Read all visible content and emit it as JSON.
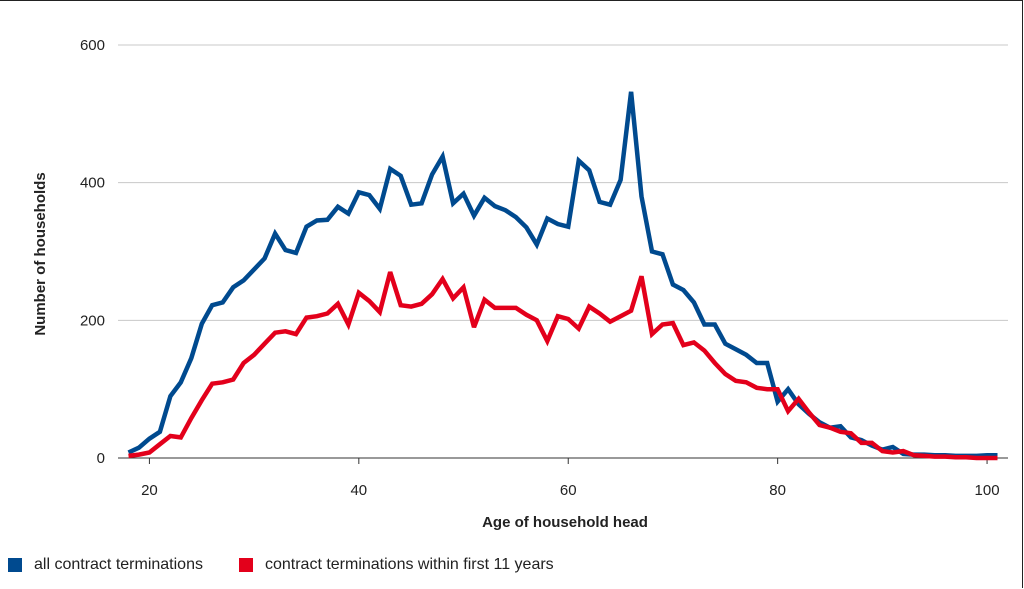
{
  "chart_data": {
    "type": "line",
    "xlabel": "Age of household head",
    "ylabel": "Number of households",
    "xlim": [
      17,
      102
    ],
    "ylim": [
      0,
      600
    ],
    "xticks": [
      20,
      40,
      60,
      80,
      100
    ],
    "yticks": [
      0,
      200,
      400,
      600
    ],
    "grid": "horizontal",
    "legend_position": "bottom-left",
    "x": [
      18,
      19,
      20,
      21,
      22,
      23,
      24,
      25,
      26,
      27,
      28,
      29,
      30,
      31,
      32,
      33,
      34,
      35,
      36,
      37,
      38,
      39,
      40,
      41,
      42,
      43,
      44,
      45,
      46,
      47,
      48,
      49,
      50,
      51,
      52,
      53,
      54,
      55,
      56,
      57,
      58,
      59,
      60,
      61,
      62,
      63,
      64,
      65,
      66,
      67,
      68,
      69,
      70,
      71,
      72,
      73,
      74,
      75,
      76,
      77,
      78,
      79,
      80,
      81,
      82,
      83,
      84,
      85,
      86,
      87,
      88,
      89,
      90,
      91,
      92,
      93,
      94,
      95,
      96,
      97,
      98,
      99,
      100,
      101
    ],
    "series": [
      {
        "name": "all contract terminations",
        "color": "#004a8f",
        "values": [
          8,
          15,
          28,
          38,
          90,
          110,
          145,
          195,
          222,
          226,
          248,
          258,
          274,
          290,
          326,
          302,
          298,
          336,
          345,
          346,
          365,
          355,
          386,
          382,
          362,
          420,
          410,
          368,
          370,
          412,
          438,
          370,
          384,
          352,
          378,
          366,
          360,
          350,
          335,
          310,
          348,
          340,
          336,
          432,
          418,
          372,
          368,
          404,
          532,
          380,
          300,
          296,
          252,
          244,
          226,
          194,
          194,
          166,
          158,
          150,
          138,
          138,
          82,
          100,
          78,
          64,
          52,
          44,
          46,
          30,
          26,
          18,
          12,
          16,
          6,
          5,
          5,
          4,
          4,
          3,
          3,
          3,
          4,
          4
        ]
      },
      {
        "name": "contract terminations within first 11 years",
        "color": "#e3001b",
        "values": [
          3,
          5,
          8,
          20,
          32,
          30,
          58,
          84,
          108,
          110,
          114,
          138,
          150,
          166,
          182,
          184,
          180,
          204,
          206,
          210,
          224,
          194,
          240,
          228,
          212,
          270,
          222,
          220,
          224,
          238,
          260,
          232,
          248,
          190,
          230,
          218,
          218,
          218,
          208,
          200,
          170,
          206,
          202,
          188,
          220,
          210,
          198,
          206,
          214,
          264,
          180,
          194,
          196,
          164,
          168,
          156,
          138,
          122,
          112,
          110,
          102,
          100,
          100,
          68,
          86,
          66,
          48,
          44,
          38,
          36,
          22,
          22,
          10,
          8,
          10,
          4,
          3,
          2,
          2,
          1,
          1,
          0,
          0,
          0
        ]
      }
    ]
  }
}
